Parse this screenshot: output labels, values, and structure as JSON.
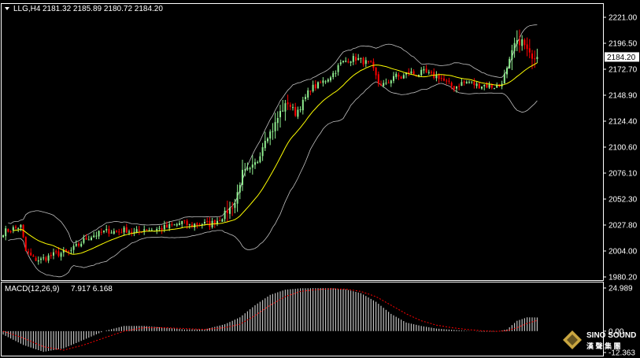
{
  "header": {
    "symbol": "LLG,H4",
    "ohlc": "2181.32 2185.89 2180.72 2184.20"
  },
  "macd_header": {
    "label": "MACD(12,26,9)",
    "values": "7.917 6.168"
  },
  "current_price": "2184.20",
  "logo": {
    "name": "SINO SOUND",
    "cn": "漢 聲 集 團"
  },
  "colors": {
    "background": "#000000",
    "bull": "#90ee90",
    "bear": "#ff0000",
    "ma": "#ffff00",
    "bands": "#c0c0c0",
    "macd_signal": "#ff0000",
    "macd_hist": "#c0c0c0",
    "frame": "#ffffff"
  },
  "chart_data": [
    {
      "type": "candlestick",
      "title": "LLG,H4",
      "ylim": [
        1980.2,
        2221.0
      ],
      "y_ticks": [
        "2221.00",
        "2196.50",
        "2172.70",
        "2148.90",
        "2124.40",
        "2100.60",
        "2076.10",
        "2052.30",
        "2027.80",
        "2004.00",
        "1980.20"
      ],
      "indicators": [
        "Bollinger Bands",
        "Moving Average"
      ],
      "last_price": 2184.2,
      "close_path": [
        [
          0,
          2022
        ],
        [
          4,
          2025
        ],
        [
          7,
          2027
        ],
        [
          9,
          2004
        ],
        [
          12,
          1997
        ],
        [
          15,
          1996
        ],
        [
          18,
          1999
        ],
        [
          22,
          2002
        ],
        [
          26,
          2003
        ],
        [
          30,
          2010
        ],
        [
          33,
          2016
        ],
        [
          36,
          2019
        ],
        [
          39,
          2021
        ],
        [
          42,
          2023
        ],
        [
          45,
          2022
        ],
        [
          49,
          2024
        ],
        [
          52,
          2021
        ],
        [
          56,
          2025
        ],
        [
          60,
          2024
        ],
        [
          64,
          2026
        ],
        [
          68,
          2028
        ],
        [
          71,
          2031
        ],
        [
          74,
          2028
        ],
        [
          78,
          2030
        ],
        [
          82,
          2029
        ],
        [
          86,
          2034
        ],
        [
          89,
          2041
        ],
        [
          92,
          2049
        ],
        [
          95,
          2077
        ],
        [
          98,
          2079
        ],
        [
          101,
          2088
        ],
        [
          104,
          2109
        ],
        [
          107,
          2117
        ],
        [
          110,
          2133
        ],
        [
          113,
          2142
        ],
        [
          116,
          2132
        ],
        [
          119,
          2142
        ],
        [
          122,
          2155
        ],
        [
          125,
          2158
        ],
        [
          128,
          2163
        ],
        [
          131,
          2169
        ],
        [
          134,
          2178
        ],
        [
          137,
          2182
        ],
        [
          140,
          2183
        ],
        [
          143,
          2180
        ],
        [
          146,
          2177
        ],
        [
          149,
          2160
        ],
        [
          152,
          2158
        ],
        [
          155,
          2167
        ],
        [
          158,
          2165
        ],
        [
          161,
          2170
        ],
        [
          164,
          2168
        ],
        [
          167,
          2170
        ],
        [
          170,
          2167
        ],
        [
          173,
          2166
        ],
        [
          176,
          2160
        ],
        [
          179,
          2156
        ],
        [
          182,
          2160
        ],
        [
          185,
          2161
        ],
        [
          188,
          2158
        ],
        [
          191,
          2158
        ],
        [
          194,
          2157
        ],
        [
          197,
          2157
        ],
        [
          200,
          2172
        ],
        [
          203,
          2196
        ],
        [
          206,
          2199
        ],
        [
          209,
          2186
        ],
        [
          212,
          2184
        ]
      ]
    },
    {
      "type": "bar",
      "title": "MACD(12,26,9)",
      "ylim": [
        -12.363,
        24.989
      ],
      "y_ticks": [
        "24.989",
        "0.00",
        "-12.363"
      ],
      "series": [
        {
          "name": "MACD",
          "display": "histogram"
        },
        {
          "name": "Signal",
          "display": "dotted-line"
        }
      ],
      "macd_path": [
        [
          0,
          -2
        ],
        [
          8,
          -8
        ],
        [
          16,
          -12
        ],
        [
          24,
          -10
        ],
        [
          32,
          -5
        ],
        [
          40,
          0
        ],
        [
          48,
          3
        ],
        [
          56,
          3
        ],
        [
          64,
          2
        ],
        [
          72,
          1
        ],
        [
          80,
          1
        ],
        [
          88,
          4
        ],
        [
          94,
          8
        ],
        [
          100,
          15
        ],
        [
          106,
          21
        ],
        [
          112,
          24
        ],
        [
          118,
          24.8
        ],
        [
          124,
          24.9
        ],
        [
          130,
          24.9
        ],
        [
          136,
          24.2
        ],
        [
          142,
          22
        ],
        [
          148,
          17
        ],
        [
          154,
          10
        ],
        [
          160,
          5
        ],
        [
          166,
          3
        ],
        [
          172,
          1.5
        ],
        [
          178,
          0.8
        ],
        [
          184,
          0.2
        ],
        [
          190,
          -0.3
        ],
        [
          196,
          -0.2
        ],
        [
          200,
          1
        ],
        [
          204,
          6
        ],
        [
          208,
          8
        ],
        [
          212,
          7.917
        ]
      ],
      "signal_path": [
        [
          0,
          0
        ],
        [
          8,
          -4
        ],
        [
          16,
          -9
        ],
        [
          24,
          -11
        ],
        [
          32,
          -8
        ],
        [
          40,
          -4
        ],
        [
          48,
          0
        ],
        [
          56,
          2
        ],
        [
          64,
          2
        ],
        [
          72,
          1.5
        ],
        [
          80,
          1
        ],
        [
          88,
          2
        ],
        [
          94,
          4
        ],
        [
          100,
          9
        ],
        [
          106,
          15
        ],
        [
          112,
          20
        ],
        [
          118,
          23
        ],
        [
          124,
          24
        ],
        [
          130,
          24.5
        ],
        [
          136,
          24.3
        ],
        [
          142,
          23
        ],
        [
          148,
          20
        ],
        [
          154,
          15
        ],
        [
          160,
          10
        ],
        [
          166,
          6
        ],
        [
          172,
          3.5
        ],
        [
          178,
          2
        ],
        [
          184,
          1
        ],
        [
          190,
          0.2
        ],
        [
          196,
          -0.1
        ],
        [
          200,
          0.2
        ],
        [
          204,
          2
        ],
        [
          208,
          4.5
        ],
        [
          212,
          6.168
        ]
      ]
    }
  ]
}
